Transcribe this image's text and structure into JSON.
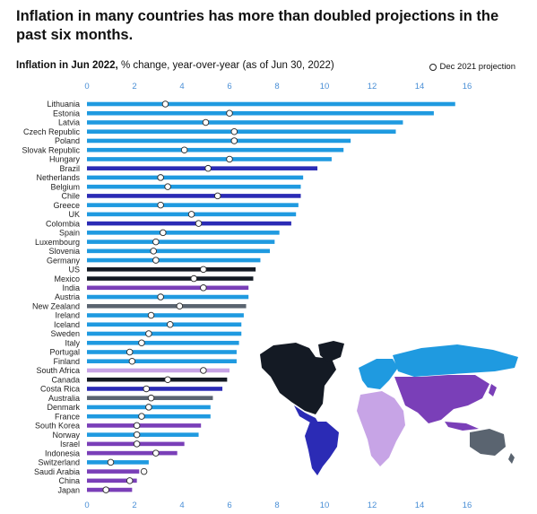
{
  "title": "Inflation in many countries has more than doubled projections in the past six months.",
  "subtitle_bold": "Inflation in Jun 2022,",
  "subtitle_rest": " % change, year-over-year (as of Jun 30, 2022)",
  "legend_label": "Dec 2021 projection",
  "colors": {
    "europe": "#1f9ae0",
    "latam": "#2b2bb5",
    "north_america": "#141a24",
    "asia": "#7a3fb8",
    "oceania": "#5a6470",
    "africa": "#c7a4e6"
  },
  "chart_data": {
    "type": "bar",
    "orientation": "horizontal",
    "xlim": [
      0,
      16
    ],
    "x_ticks": [
      "0",
      "2",
      "4",
      "6",
      "8",
      "10",
      "12",
      "14",
      "16"
    ],
    "categories": [
      "Lithuania",
      "Estonia",
      "Latvia",
      "Czech Republic",
      "Poland",
      "Slovak Republic",
      "Hungary",
      "Brazil",
      "Netherlands",
      "Belgium",
      "Chile",
      "Greece",
      "UK",
      "Colombia",
      "Spain",
      "Luxembourg",
      "Slovenia",
      "Germany",
      "US",
      "Mexico",
      "India",
      "Austria",
      "New Zealand",
      "Ireland",
      "Iceland",
      "Sweden",
      "Italy",
      "Portugal",
      "Finland",
      "South Africa",
      "Canada",
      "Costa Rica",
      "Australia",
      "Denmark",
      "France",
      "South Korea",
      "Norway",
      "Israel",
      "Indonesia",
      "Switzerland",
      "Saudi Arabia",
      "China",
      "Japan"
    ],
    "series": [
      {
        "name": "Inflation in Jun 2022",
        "values": [
          15.5,
          14.6,
          13.3,
          13.0,
          11.1,
          10.8,
          10.3,
          9.7,
          9.1,
          9.0,
          9.0,
          8.9,
          8.8,
          8.6,
          8.1,
          7.9,
          7.7,
          7.3,
          7.1,
          7.0,
          6.8,
          6.8,
          6.7,
          6.6,
          6.5,
          6.5,
          6.4,
          6.3,
          6.3,
          6.0,
          5.9,
          5.7,
          5.3,
          5.2,
          5.2,
          4.8,
          4.7,
          4.1,
          3.8,
          2.6,
          2.2,
          2.1,
          1.9
        ]
      },
      {
        "name": "Dec 2021 projection",
        "values": [
          3.3,
          6.0,
          5.0,
          6.2,
          6.2,
          4.1,
          6.0,
          5.1,
          3.1,
          3.4,
          5.5,
          3.1,
          4.4,
          4.7,
          3.2,
          2.9,
          2.8,
          2.9,
          4.9,
          4.5,
          4.9,
          3.1,
          3.9,
          2.7,
          3.5,
          2.6,
          2.3,
          1.8,
          1.9,
          4.9,
          3.4,
          2.5,
          2.7,
          2.6,
          2.3,
          2.1,
          2.1,
          2.1,
          2.9,
          1.0,
          2.4,
          1.8,
          0.8
        ]
      }
    ],
    "regions": [
      "europe",
      "europe",
      "europe",
      "europe",
      "europe",
      "europe",
      "europe",
      "latam",
      "europe",
      "europe",
      "latam",
      "europe",
      "europe",
      "latam",
      "europe",
      "europe",
      "europe",
      "europe",
      "north_america",
      "north_america",
      "asia",
      "europe",
      "oceania",
      "europe",
      "europe",
      "europe",
      "europe",
      "europe",
      "europe",
      "africa",
      "north_america",
      "latam",
      "oceania",
      "europe",
      "europe",
      "asia",
      "europe",
      "asia",
      "asia",
      "europe",
      "asia",
      "asia",
      "asia"
    ]
  }
}
